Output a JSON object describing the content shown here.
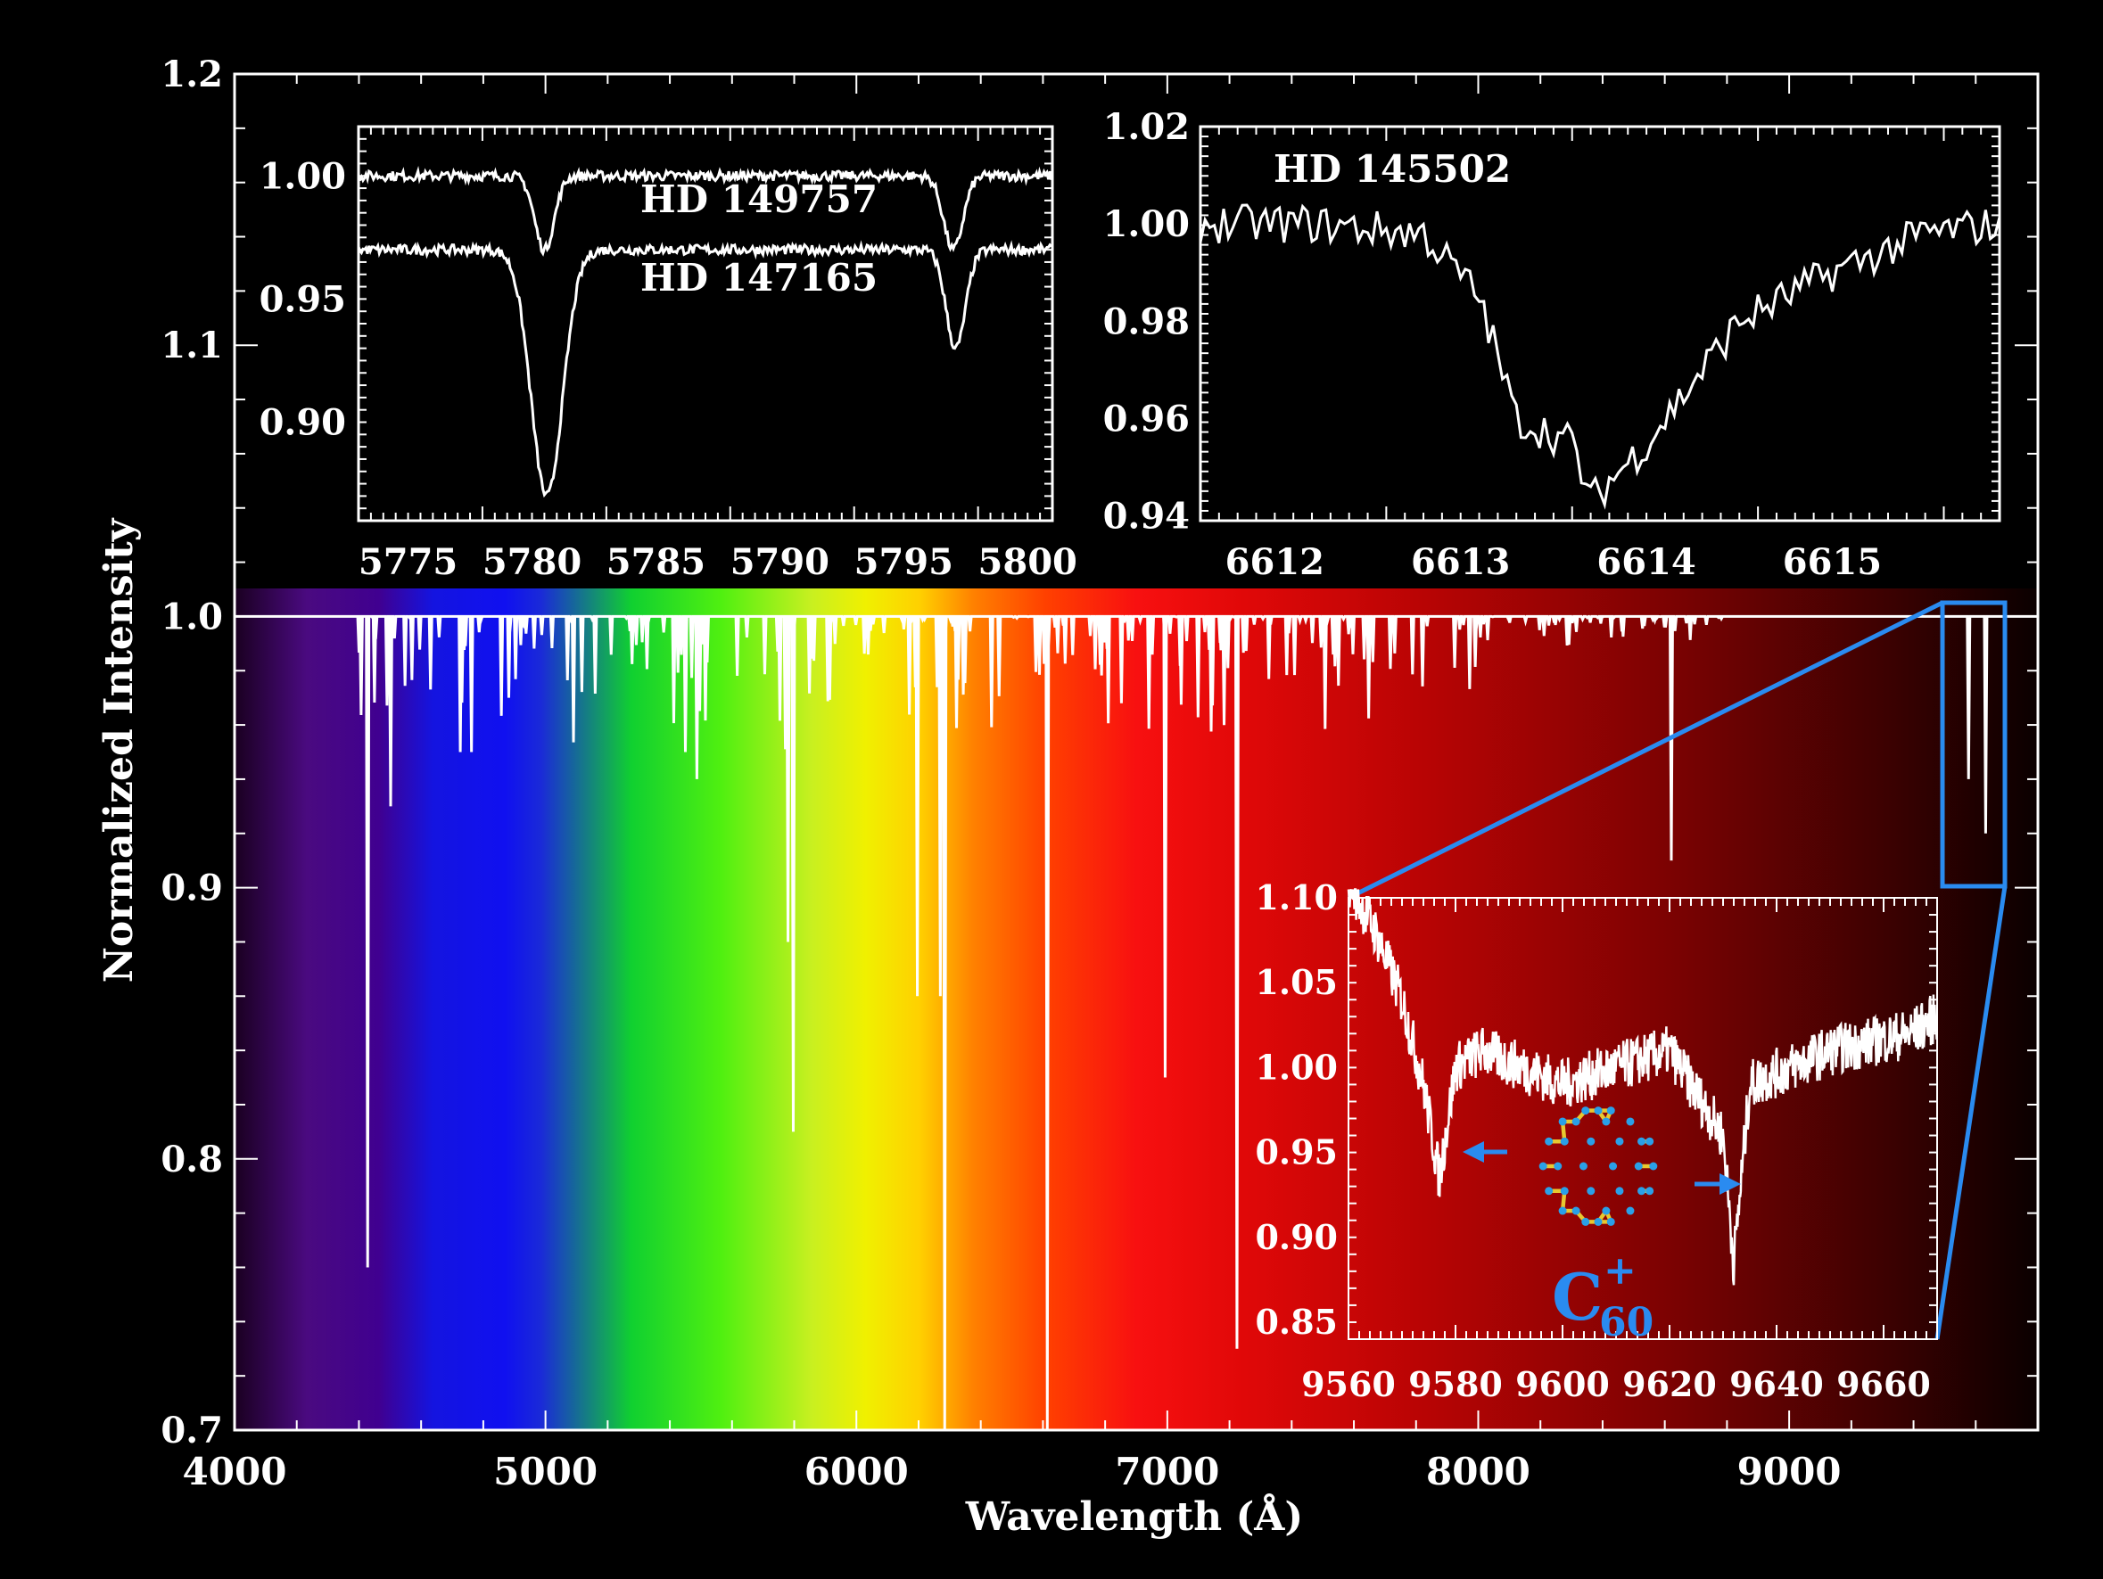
{
  "chart_data": [
    {
      "type": "line",
      "name_role": "main",
      "xlabel": "Wavelength  (Å)",
      "ylabel": "Normalized Intensity",
      "xlim": [
        4000,
        9800
      ],
      "ylim": [
        0.7,
        1.2
      ],
      "x_ticks": [
        "4000",
        "5000",
        "6000",
        "7000",
        "8000",
        "9000"
      ],
      "y_ticks": [
        "0.7",
        "0.8",
        "0.9",
        "1.0",
        "1.1",
        "1.2"
      ],
      "background": "visible spectrum color gradient",
      "continuum": 1.0,
      "absorption_lines": [
        {
          "x": 4428,
          "depth": 0.24
        },
        {
          "x": 4502,
          "depth": 0.07
        },
        {
          "x": 4726,
          "depth": 0.05
        },
        {
          "x": 4762,
          "depth": 0.05
        },
        {
          "x": 4882,
          "depth": 0.03
        },
        {
          "x": 5450,
          "depth": 0.05
        },
        {
          "x": 5487,
          "depth": 0.06
        },
        {
          "x": 5780,
          "depth": 0.12
        },
        {
          "x": 5797,
          "depth": 0.19
        },
        {
          "x": 6196,
          "depth": 0.14
        },
        {
          "x": 6270,
          "depth": 0.14
        },
        {
          "x": 6284,
          "depth": 0.3
        },
        {
          "x": 6614,
          "depth": 0.3
        },
        {
          "x": 6993,
          "depth": 0.17
        },
        {
          "x": 7224,
          "depth": 0.27
        },
        {
          "x": 8621,
          "depth": 0.09
        },
        {
          "x": 9577,
          "depth": 0.06
        },
        {
          "x": 9632,
          "depth": 0.08
        }
      ]
    },
    {
      "type": "line",
      "name_role": "inset-top-left",
      "xlim": [
        5773,
        5801
      ],
      "ylim": [
        0.86,
        1.02
      ],
      "x_ticks": [
        "5775",
        "5780",
        "5785",
        "5790",
        "5795",
        "5800"
      ],
      "y_ticks": [
        "0.90",
        "0.95",
        "1.00"
      ],
      "series": [
        {
          "name": "HD 149757",
          "baseline": 1.0,
          "lines": [
            {
              "x": 5780.5,
              "depth": 0.03
            },
            {
              "x": 5797.0,
              "depth": 0.03
            }
          ]
        },
        {
          "name": "HD 147165",
          "baseline": 0.97,
          "lines": [
            {
              "x": 5780.6,
              "depth": 0.1
            },
            {
              "x": 5797.1,
              "depth": 0.04
            }
          ]
        }
      ]
    },
    {
      "type": "line",
      "name_role": "inset-top-right",
      "xlim": [
        6611.6,
        6615.9
      ],
      "ylim": [
        0.939,
        1.02
      ],
      "x_ticks": [
        "6612",
        "6613",
        "6614",
        "6615"
      ],
      "y_ticks": [
        "0.94",
        "0.96",
        "0.98",
        "1.00",
        "1.02"
      ],
      "series": [
        {
          "name": "HD 145502",
          "x": [
            6611.6,
            6612.2,
            6612.8,
            6613.1,
            6613.3,
            6613.6,
            6613.7,
            6614.0,
            6614.5,
            6615.0,
            6615.5,
            6615.9
          ],
          "y": [
            1.0,
            1.0,
            0.998,
            0.985,
            0.96,
            0.955,
            0.943,
            0.955,
            0.98,
            0.99,
            0.998,
            1.0
          ]
        }
      ]
    },
    {
      "type": "line",
      "name_role": "inset-bottom-right",
      "xlim": [
        9560,
        9670
      ],
      "ylim": [
        0.84,
        1.1
      ],
      "x_ticks": [
        "9560",
        "9580",
        "9600",
        "9620",
        "9640",
        "9660"
      ],
      "y_ticks": [
        "0.85",
        "0.90",
        "0.95",
        "1.00",
        "1.05",
        "1.10"
      ],
      "series": [
        {
          "name": "",
          "x": [
            9560,
            9565,
            9570,
            9574,
            9577,
            9580,
            9585,
            9600,
            9620,
            9626,
            9630,
            9632,
            9635,
            9650,
            9665,
            9670
          ],
          "y": [
            1.11,
            1.08,
            1.04,
            0.99,
            0.935,
            1.0,
            1.01,
            0.99,
            1.01,
            0.98,
            0.96,
            0.885,
            0.99,
            1.01,
            1.02,
            1.03
          ]
        }
      ],
      "annotation": {
        "molecule": "C",
        "subscript": "60",
        "superscript": "+"
      }
    }
  ],
  "colors": {
    "arrow": "#2a8bf0",
    "zoom_box": "#2a8bf0",
    "line": "#ffffff"
  }
}
